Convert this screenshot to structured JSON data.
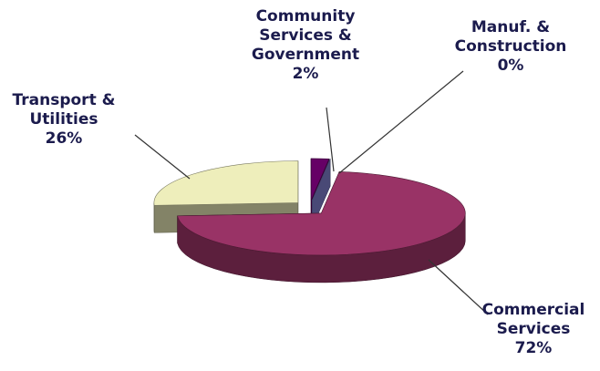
{
  "chart_data": {
    "type": "pie3d",
    "categories": [
      "Community Services & Government",
      "Manuf. & Construction",
      "Commercial Services",
      "Transport & Utilities"
    ],
    "values": [
      2,
      0,
      72,
      26
    ],
    "value_labels": [
      "2%",
      "0%",
      "72%",
      "26%"
    ],
    "colors": [
      "#660066",
      "#8585d6",
      "#993366",
      "#eeeebb"
    ]
  }
}
